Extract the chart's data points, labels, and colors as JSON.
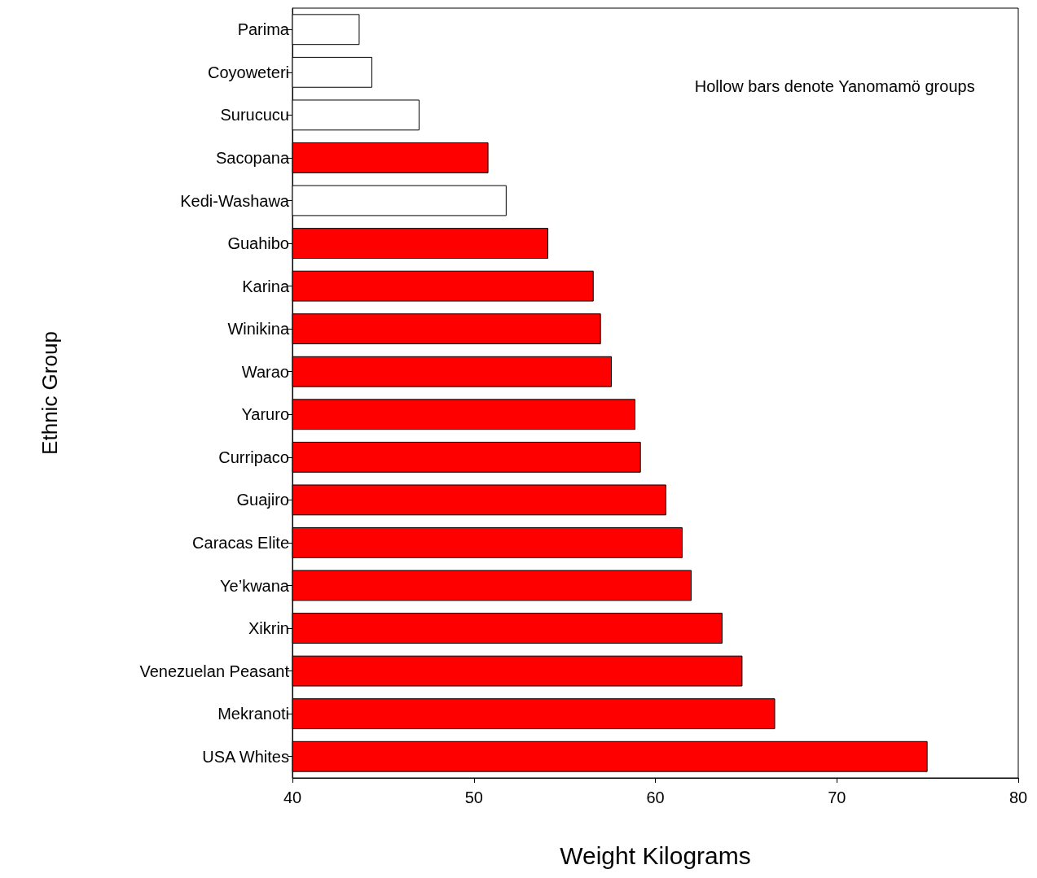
{
  "chart_data": {
    "type": "bar",
    "orientation": "horizontal",
    "xlabel": "Weight Kilograms",
    "ylabel": "Ethnic Group",
    "categories": [
      "Parima",
      "Coyoweteri",
      "Surucucu",
      "Sacopana",
      "Kedi-Washawa",
      "Guahibo",
      "Karina",
      "Winikina",
      "Warao",
      "Yaruro",
      "Curripaco",
      "Guajiro",
      "Caracas Elite",
      "Ye’kwana",
      "Xikrin",
      "Venezuelan Peasant",
      "Mekranoti",
      "USA Whites"
    ],
    "values": [
      43.7,
      44.4,
      47.0,
      50.8,
      51.8,
      54.1,
      56.6,
      57.0,
      57.6,
      58.9,
      59.2,
      60.6,
      61.5,
      62.0,
      63.7,
      64.8,
      66.6,
      75.0
    ],
    "colors": [
      "#ffffff",
      "#ffffff",
      "#ffffff",
      "#ff0000",
      "#ffffff",
      "#ff0000",
      "#ff0000",
      "#ff0000",
      "#ff0000",
      "#ff0000",
      "#ff0000",
      "#ff0000",
      "#ff0000",
      "#ff0000",
      "#ff0000",
      "#ff0000",
      "#ff0000",
      "#ff0000"
    ],
    "xlim": [
      40,
      80
    ],
    "xticks": [
      40,
      50,
      60,
      70,
      80
    ],
    "annotations": [
      "Hollow bars denote Yanomamö groups"
    ],
    "grid": false
  }
}
